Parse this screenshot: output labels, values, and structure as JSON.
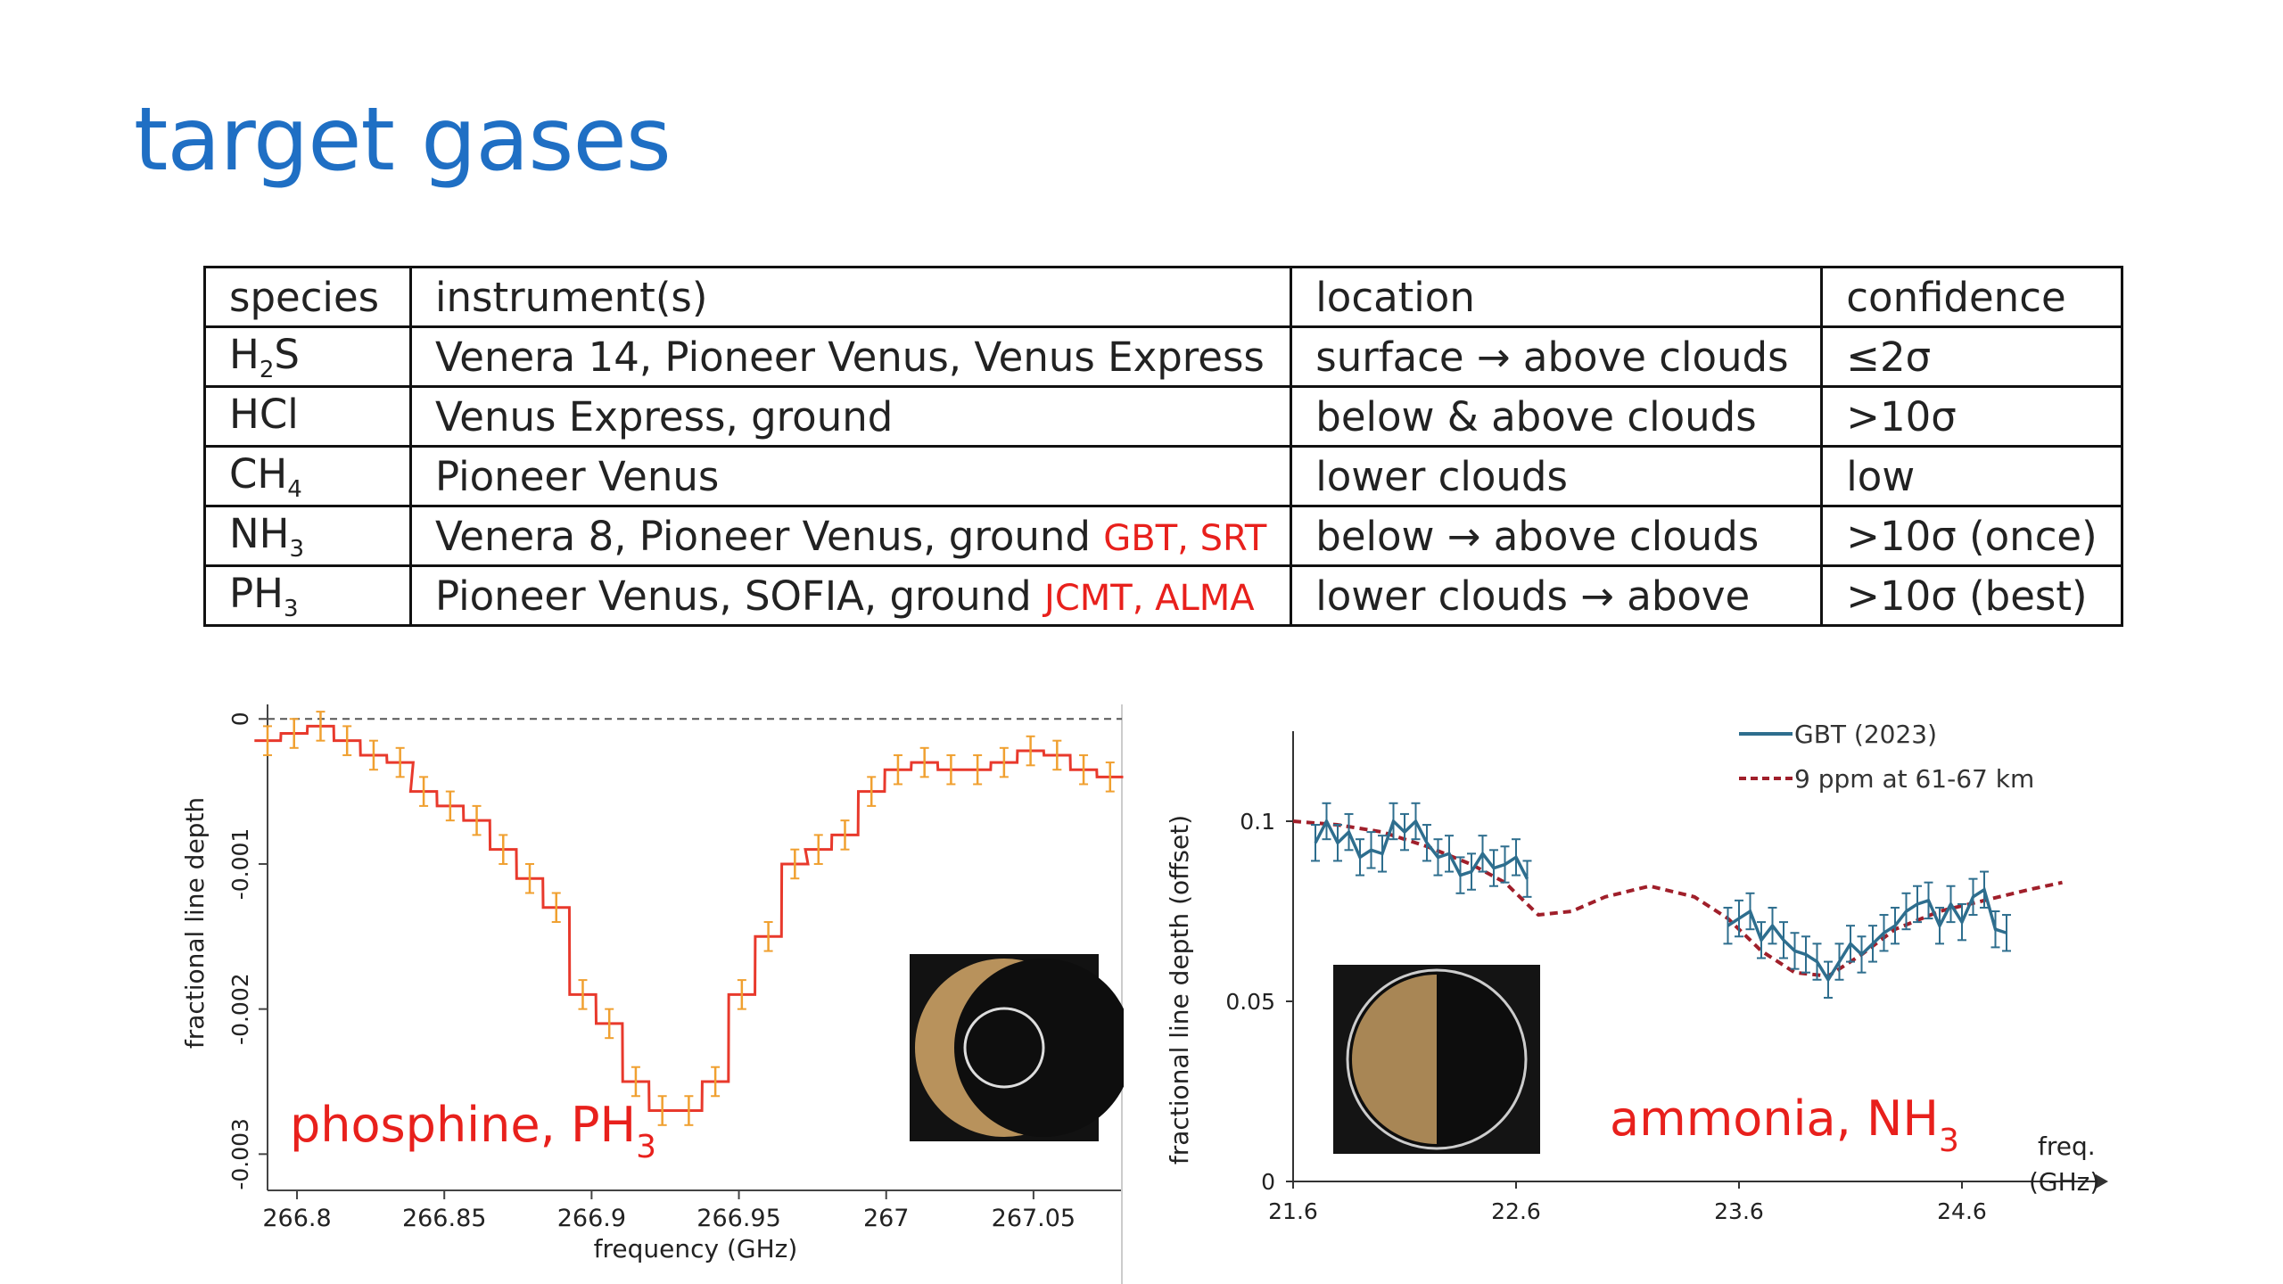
{
  "slide": {
    "title": "target gases"
  },
  "table": {
    "headers": [
      "species",
      "instrument(s)",
      "location",
      "confidence"
    ],
    "rows": [
      {
        "species": "H",
        "sub": "2",
        "species_tail": "S",
        "instrument": "Venera 14, Pioneer Venus, Venus Express",
        "red": "",
        "location": "surface → above clouds",
        "confidence": "≤2σ"
      },
      {
        "species": "HCl",
        "sub": "",
        "species_tail": "",
        "instrument": "Venus Express, ground",
        "red": "",
        "location": "below & above clouds",
        "confidence": ">10σ"
      },
      {
        "species": "CH",
        "sub": "4",
        "species_tail": "",
        "instrument": "Pioneer Venus",
        "red": "",
        "location": "lower clouds",
        "confidence": "low"
      },
      {
        "species": "NH",
        "sub": "3",
        "species_tail": "",
        "instrument": "Venera 8, Pioneer Venus, ground",
        "red": "GBT, SRT",
        "location": "below → above clouds",
        "confidence": ">10σ (once)"
      },
      {
        "species": "PH",
        "sub": "3",
        "species_tail": "",
        "instrument": "Pioneer Venus, SOFIA, ground",
        "red": "JCMT, ALMA",
        "location": "lower clouds → above",
        "confidence": ">10σ (best)"
      }
    ]
  },
  "chart_data": [
    {
      "type": "line",
      "label_main": "phosphine, PH",
      "label_sub": "3",
      "xlabel": "frequency (GHz)",
      "ylabel": "fractional line depth",
      "xlim": [
        266.79,
        267.08
      ],
      "ylim": [
        -0.00325,
        0.0001
      ],
      "xticks": [
        "266.8",
        "266.85",
        "266.9",
        "266.95",
        "267",
        "267.05"
      ],
      "xtick_values": [
        266.8,
        266.85,
        266.9,
        266.95,
        267.0,
        267.05
      ],
      "yticks": [
        "0",
        "-0.001",
        "-0.002",
        "-0.003"
      ],
      "ytick_values": [
        0,
        -0.001,
        -0.002,
        -0.003
      ],
      "step_width": 0.0089,
      "series": [
        {
          "x": [
            266.79,
            266.799,
            266.808,
            266.817,
            266.826,
            266.835,
            266.843,
            266.852,
            266.861,
            266.87,
            266.879,
            266.888,
            266.897,
            266.906,
            266.915,
            266.924,
            266.933,
            266.942,
            266.951,
            266.96,
            266.969,
            266.977,
            266.986,
            266.995,
            267.004,
            267.013,
            267.022,
            267.031,
            267.04,
            267.049,
            267.058,
            267.067,
            267.076
          ],
          "y": [
            -0.00015,
            -0.0001,
            -5e-05,
            -0.00015,
            -0.00025,
            -0.0003,
            -0.0005,
            -0.0006,
            -0.0007,
            -0.0009,
            -0.0011,
            -0.0013,
            -0.0019,
            -0.0021,
            -0.0025,
            -0.0027,
            -0.0027,
            -0.0025,
            -0.0019,
            -0.0015,
            -0.001,
            -0.0009,
            -0.0008,
            -0.0005,
            -0.00035,
            -0.0003,
            -0.00035,
            -0.00035,
            -0.0003,
            -0.00022,
            -0.00025,
            -0.00035,
            -0.0004
          ],
          "err": 0.0001
        }
      ]
    },
    {
      "type": "line",
      "label_main": "ammonia, NH",
      "label_sub": "3",
      "xlabel": "freq.",
      "xlabel2": "(GHz)",
      "ylabel": "fractional line depth (offset)",
      "xlim": [
        21.6,
        25.2
      ],
      "ylim": [
        0,
        0.125
      ],
      "xticks": [
        "21.6",
        "22.6",
        "23.6",
        "24.6"
      ],
      "xtick_values": [
        21.6,
        22.6,
        23.6,
        24.6
      ],
      "yticks": [
        "0",
        "0.05",
        "0.1"
      ],
      "ytick_values": [
        0,
        0.05,
        0.1
      ],
      "series": [
        {
          "name": "GBT (2023)",
          "color": "#2e6e8e",
          "segments": [
            {
              "x": [
                21.7,
                21.75,
                21.8,
                21.85,
                21.9,
                21.95,
                22.0,
                22.05,
                22.1,
                22.15,
                22.2,
                22.25,
                22.3,
                22.35,
                22.4,
                22.45,
                22.5,
                22.55,
                22.6,
                22.65
              ],
              "y": [
                0.094,
                0.1,
                0.094,
                0.097,
                0.09,
                0.092,
                0.091,
                0.1,
                0.097,
                0.1,
                0.094,
                0.09,
                0.091,
                0.085,
                0.086,
                0.091,
                0.087,
                0.088,
                0.09,
                0.084
              ]
            },
            {
              "x": [
                23.55,
                23.6,
                23.65,
                23.7,
                23.75,
                23.8,
                23.85,
                23.9,
                23.95,
                24.0,
                24.05,
                24.1,
                24.15,
                24.2,
                24.25,
                24.3,
                24.35,
                24.4,
                24.45,
                24.5,
                24.55,
                24.6,
                24.65,
                24.7,
                24.75,
                24.8
              ],
              "y": [
                0.071,
                0.073,
                0.075,
                0.067,
                0.071,
                0.067,
                0.064,
                0.063,
                0.061,
                0.056,
                0.061,
                0.066,
                0.063,
                0.066,
                0.069,
                0.071,
                0.075,
                0.077,
                0.078,
                0.071,
                0.077,
                0.072,
                0.079,
                0.081,
                0.07,
                0.069
              ]
            }
          ],
          "err": 0.005
        },
        {
          "name": "9 ppm at 61-67 km",
          "color": "#a01f2a",
          "dashed": true,
          "x": [
            21.6,
            21.8,
            22.0,
            22.2,
            22.4,
            22.55,
            22.7,
            22.85,
            23.0,
            23.2,
            23.4,
            23.55,
            23.7,
            23.85,
            24.0,
            24.15,
            24.3,
            24.5,
            24.7,
            24.9,
            25.05
          ],
          "y": [
            0.1,
            0.099,
            0.097,
            0.093,
            0.088,
            0.083,
            0.074,
            0.075,
            0.079,
            0.082,
            0.079,
            0.073,
            0.064,
            0.058,
            0.057,
            0.063,
            0.07,
            0.075,
            0.078,
            0.081,
            0.083
          ]
        }
      ]
    }
  ]
}
